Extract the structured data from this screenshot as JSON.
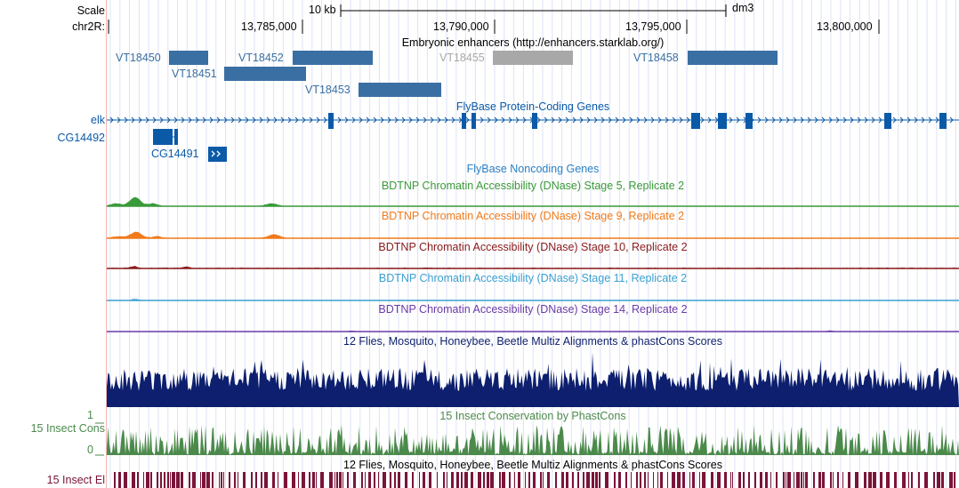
{
  "ruler": {
    "scale_label": "Scale",
    "chrom_label": "chr2R:",
    "scale_bar_label": "10 kb",
    "assembly": "dm3",
    "positions": [
      "13,785,000",
      "13,790,000",
      "13,795,000",
      "13,800,000"
    ]
  },
  "enhancers": {
    "title": "Embryonic enhancers (http://enhancers.starklab.org/)",
    "items": [
      {
        "label": "VT18450",
        "color": "#3a6fa3"
      },
      {
        "label": "VT18451",
        "color": "#3a6fa3"
      },
      {
        "label": "VT18452",
        "color": "#3a6fa3"
      },
      {
        "label": "VT18453",
        "color": "#3a6fa3"
      },
      {
        "label": "VT18455",
        "color": "#a8a8a8"
      },
      {
        "label": "VT18458",
        "color": "#3a6fa3"
      }
    ]
  },
  "genes": {
    "title": "FlyBase Protein-Coding Genes",
    "elk_label": "elk",
    "cg14492_label": "CG14492",
    "cg14491_label": "CG14491",
    "color": "#0b5aa8"
  },
  "noncoding": {
    "title": "FlyBase Noncoding Genes",
    "color": "#2a7fc4"
  },
  "dnase_tracks": [
    {
      "title": "BDTNP Chromatin Accessibility (DNase) Stage 5, Replicate 2",
      "color": "#3a9a3a"
    },
    {
      "title": "BDTNP Chromatin Accessibility (DNase) Stage 9, Replicate 2",
      "color": "#f07a1a"
    },
    {
      "title": "BDTNP Chromatin Accessibility (DNase) Stage 10, Replicate 2",
      "color": "#8a1a1a"
    },
    {
      "title": "BDTNP Chromatin Accessibility (DNase) Stage 11, Replicate 2",
      "color": "#3aa0d0"
    },
    {
      "title": "BDTNP Chromatin Accessibility (DNase) Stage 14, Replicate 2",
      "color": "#6a3aa8"
    }
  ],
  "multiz": {
    "title": "12 Flies, Mosquito, Honeybee, Beetle Multiz Alignments & phastCons Scores",
    "color": "#0d1f6e"
  },
  "phastcons": {
    "title": "15 Insect Conservation by PhastCons",
    "left_label": "15 Insect Cons",
    "axis_max": "1",
    "axis_min": "0",
    "color": "#4c8a4c"
  },
  "elements": {
    "title": "12 Flies, Mosquito, Honeybee, Beetle Multiz Alignments & phastCons Scores",
    "left_label": "15 Insect El",
    "color": "#7a1438"
  }
}
